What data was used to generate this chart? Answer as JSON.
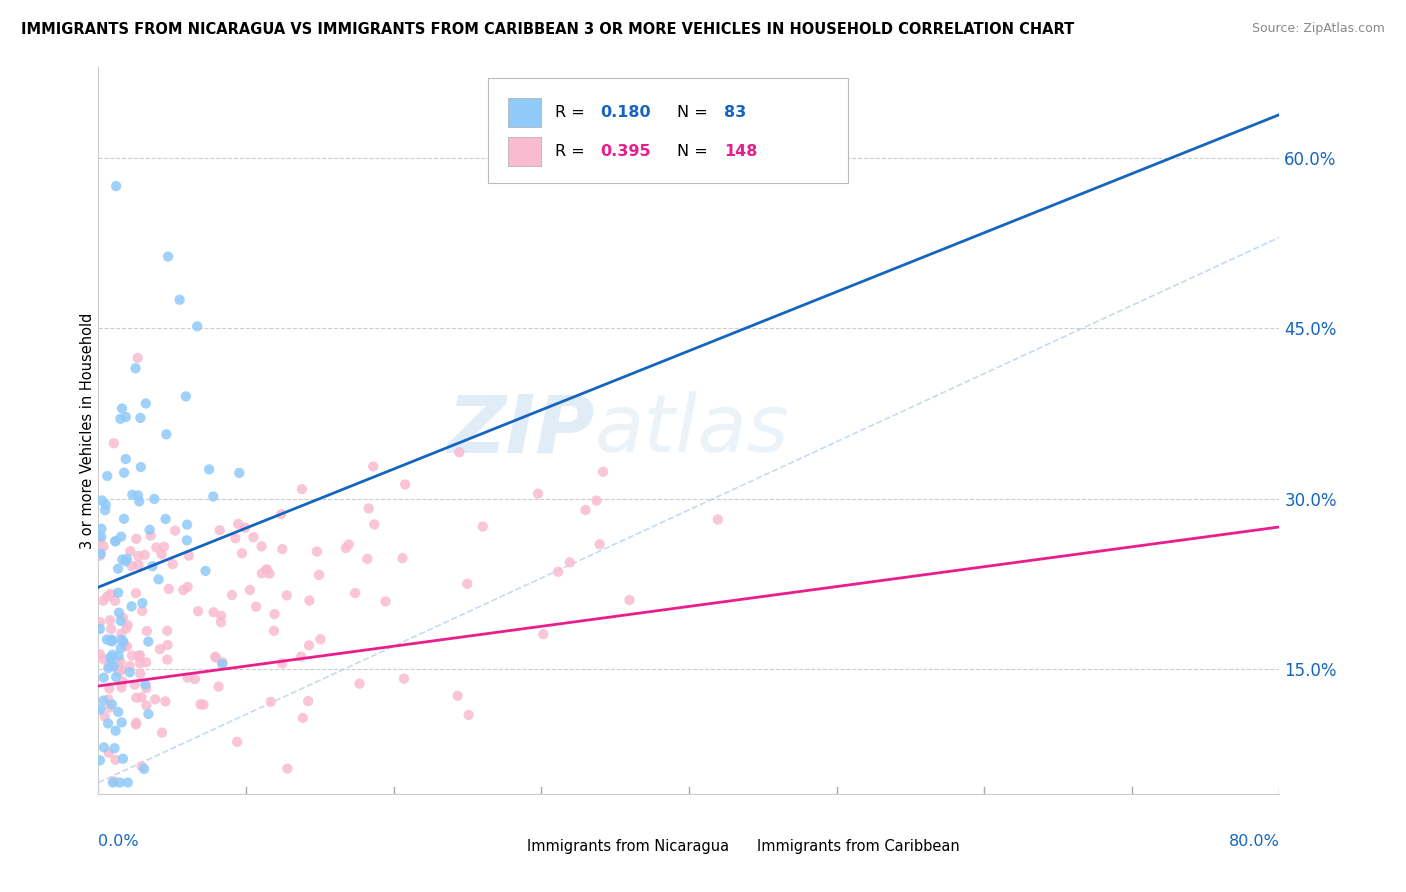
{
  "title": "IMMIGRANTS FROM NICARAGUA VS IMMIGRANTS FROM CARIBBEAN 3 OR MORE VEHICLES IN HOUSEHOLD CORRELATION CHART",
  "source": "Source: ZipAtlas.com",
  "ylabel": "3 or more Vehicles in Household",
  "ytick_labels": [
    "15.0%",
    "30.0%",
    "45.0%",
    "60.0%"
  ],
  "ytick_values": [
    0.15,
    0.3,
    0.45,
    0.6
  ],
  "xrange": [
    0.0,
    0.8
  ],
  "yrange": [
    0.04,
    0.68
  ],
  "color_nicaragua": "#90caf9",
  "color_caribbean": "#f8bbd0",
  "trendline_nicaragua": "#1565c0",
  "trendline_caribbean": "#e91e8c",
  "watermark_color": "#ddeeff",
  "legend_border": "#bbbbbb",
  "blue_label_color": "#1565c0",
  "pink_label_color": "#e91e8c"
}
